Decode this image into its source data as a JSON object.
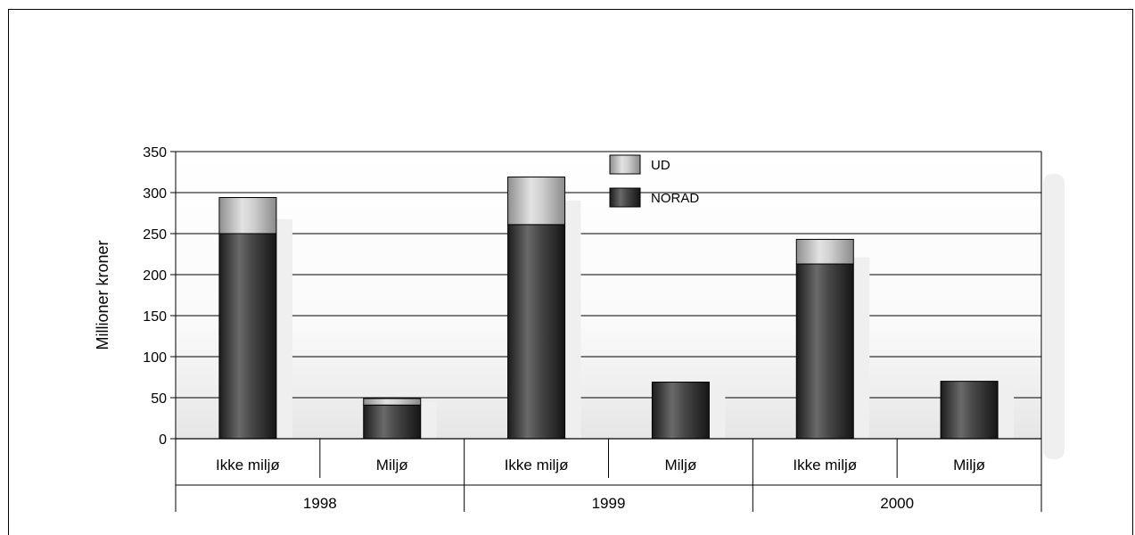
{
  "chart_data": {
    "type": "bar",
    "stacked": true,
    "ylabel": "Millioner kroner",
    "ylim": [
      0,
      350
    ],
    "yticks": [
      0,
      50,
      100,
      150,
      200,
      250,
      300,
      350
    ],
    "groups": [
      "1998",
      "1999",
      "2000"
    ],
    "categories": [
      "Ikke miljø",
      "Miljø",
      "Ikke miljø",
      "Miljø",
      "Ikke miljø",
      "Miljø"
    ],
    "series": [
      {
        "name": "NORAD",
        "values": [
          250,
          41,
          261,
          69,
          213,
          70
        ]
      },
      {
        "name": "UD",
        "values": [
          44,
          8,
          58,
          0,
          30,
          0
        ]
      }
    ],
    "legend_position": "top-center",
    "grid": true
  }
}
